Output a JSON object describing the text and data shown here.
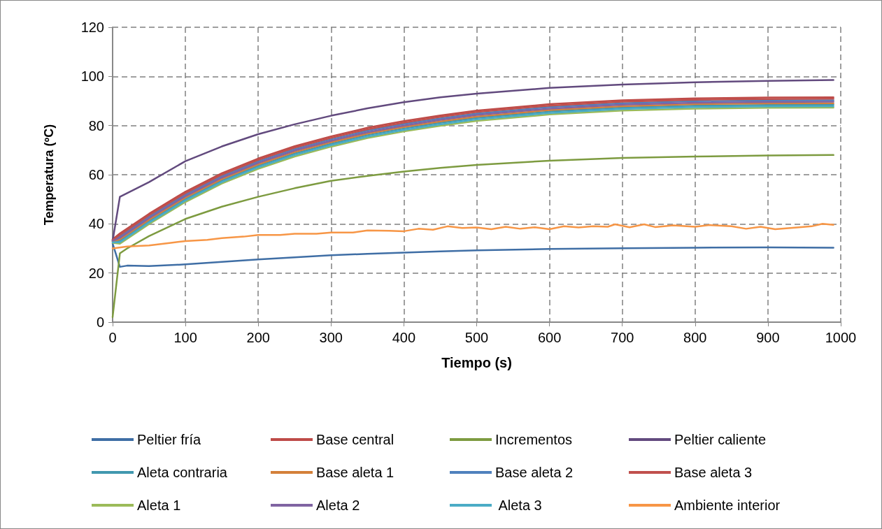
{
  "chart_data": {
    "type": "line",
    "xlabel": "Tiempo (s)",
    "ylabel": "Temperatura (ºC)",
    "xlim": [
      0,
      1000
    ],
    "xticks": [
      0,
      100,
      200,
      300,
      400,
      500,
      600,
      700,
      800,
      900,
      1000
    ],
    "ylim": [
      0,
      120
    ],
    "yticks": [
      0,
      20,
      40,
      60,
      80,
      100,
      120
    ],
    "grid": true,
    "legend": "bottom",
    "marker": "none",
    "line_style": "solid",
    "x": [
      0,
      10,
      20,
      50,
      100,
      150,
      200,
      250,
      300,
      350,
      400,
      450,
      500,
      600,
      700,
      800,
      900,
      990
    ],
    "series": [
      {
        "name": "Peltier fría",
        "color": "#3f6ea5",
        "values": [
          32,
          22.5,
          23,
          22.8,
          23.5,
          24.5,
          25.5,
          26.4,
          27.2,
          27.8,
          28.3,
          28.8,
          29.2,
          29.8,
          30.1,
          30.3,
          30.4,
          30.3
        ]
      },
      {
        "name": "Base central",
        "color": "#be4b48",
        "values": [
          33.7,
          36.1,
          38.1,
          44.1,
          53.1,
          60.6,
          66.6,
          71.6,
          75.6,
          79.1,
          81.8,
          84.1,
          86.1,
          88.7,
          90.3,
          91.1,
          91.4,
          91.5
        ]
      },
      {
        "name": "Incrementos",
        "color": "#7d9b40",
        "values": [
          2,
          28,
          30,
          35,
          42,
          47,
          51,
          54.5,
          57.5,
          59.5,
          61.3,
          62.8,
          64,
          65.7,
          66.8,
          67.4,
          67.8,
          68
        ]
      },
      {
        "name": "Peltier caliente",
        "color": "#624a7e",
        "values": [
          33,
          51,
          52.5,
          57,
          65.5,
          71.5,
          76.5,
          80.5,
          84,
          87,
          89.5,
          91.5,
          93,
          95.3,
          96.7,
          97.6,
          98.2,
          98.5
        ]
      },
      {
        "name": "Aleta contraria",
        "color": "#4198af",
        "values": [
          32.7,
          33.1,
          35.1,
          41.1,
          50.1,
          57.6,
          63.6,
          68.6,
          72.6,
          76.1,
          78.8,
          81.1,
          83.1,
          85.7,
          87.3,
          88.1,
          88.4,
          88.5
        ]
      },
      {
        "name": "Base aleta 1",
        "color": "#d4803a",
        "values": [
          32.9,
          33.7,
          35.7,
          41.7,
          50.7,
          58.2,
          64.2,
          69.2,
          73.2,
          76.7,
          79.4,
          81.7,
          83.7,
          86.3,
          87.9,
          88.7,
          89,
          89.1
        ]
      },
      {
        "name": "Base aleta 2",
        "color": "#4f81bd",
        "values": [
          33.3,
          34.9,
          36.9,
          42.9,
          51.9,
          59.4,
          65.4,
          70.4,
          74.4,
          77.9,
          80.6,
          82.9,
          84.9,
          87.5,
          89.1,
          89.9,
          90.2,
          90.3
        ]
      },
      {
        "name": "Base aleta 3",
        "color": "#c0504d",
        "values": [
          33.5,
          35.5,
          37.5,
          43.5,
          52.5,
          60,
          66,
          71,
          75,
          78.5,
          81.2,
          83.5,
          85.5,
          88.1,
          89.7,
          90.5,
          90.8,
          90.9
        ]
      },
      {
        "name": "Aleta 1",
        "color": "#9bbb59",
        "values": [
          32.3,
          31.9,
          33.9,
          39.9,
          48.9,
          56.4,
          62.4,
          67.4,
          71.4,
          74.9,
          77.6,
          79.9,
          81.9,
          84.5,
          86.1,
          86.9,
          87.2,
          87.3
        ]
      },
      {
        "name": "Aleta 2",
        "color": "#8064a2",
        "values": [
          33.1,
          34.3,
          36.3,
          42.3,
          51.3,
          58.8,
          64.8,
          69.8,
          73.8,
          77.3,
          80,
          82.3,
          84.3,
          86.9,
          88.5,
          89.3,
          89.6,
          89.7
        ]
      },
      {
        "name": " Aleta 3",
        "color": "#4bacc6",
        "values": [
          32.5,
          32.5,
          34.5,
          40.5,
          49.5,
          57,
          63,
          68,
          72,
          75.5,
          78.2,
          80.5,
          82.5,
          85.1,
          86.7,
          87.5,
          87.8,
          87.9
        ]
      },
      {
        "name": "Ambiente interior",
        "color": "#f79646",
        "x": [
          0,
          20,
          50,
          80,
          100,
          130,
          150,
          180,
          200,
          230,
          250,
          280,
          300,
          330,
          350,
          380,
          400,
          420,
          440,
          460,
          480,
          500,
          520,
          540,
          560,
          580,
          600,
          620,
          640,
          660,
          680,
          690,
          710,
          730,
          745,
          770,
          800,
          820,
          850,
          870,
          890,
          910,
          940,
          960,
          975,
          990
        ],
        "values": [
          30,
          30.8,
          31.2,
          32.3,
          33,
          33.5,
          34.2,
          34.8,
          35.5,
          35.5,
          36,
          36,
          36.5,
          36.5,
          37.3,
          37.2,
          37,
          38,
          37.6,
          39,
          38.3,
          38.5,
          37.8,
          38.8,
          38,
          38.6,
          37.8,
          39,
          38.5,
          39,
          38.8,
          39.8,
          38.6,
          39.8,
          38.7,
          39.4,
          38.8,
          39.5,
          39,
          38,
          38.8,
          37.8,
          38.5,
          39,
          40,
          39.6
        ]
      }
    ]
  }
}
